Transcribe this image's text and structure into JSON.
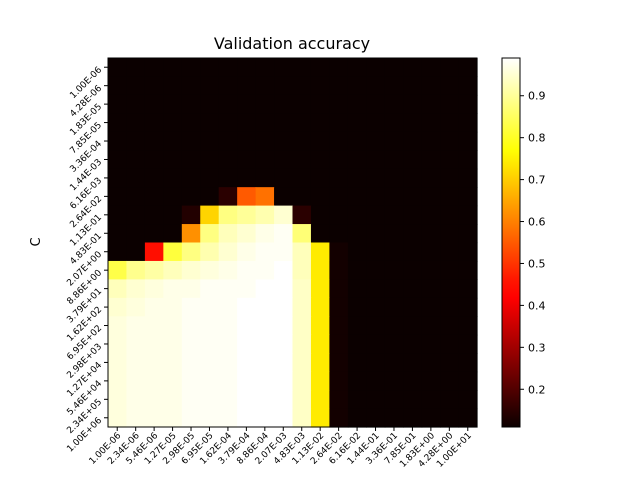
{
  "chart_data": {
    "type": "heatmap",
    "title": "Validation accuracy",
    "xlabel": "",
    "ylabel": "C",
    "x_categories": [
      "1.00E-06",
      "2.34E-06",
      "5.46E-06",
      "1.27E-05",
      "2.98E-05",
      "6.95E-05",
      "1.62E-04",
      "3.79E-04",
      "8.86E-04",
      "2.07E-03",
      "4.83E-03",
      "1.13E-02",
      "2.64E-02",
      "6.16E-02",
      "1.44E-01",
      "3.36E-01",
      "7.85E-01",
      "1.83E+00",
      "4.28E+00",
      "1.00E+01"
    ],
    "y_categories": [
      "1.00E-06",
      "4.28E-06",
      "1.83E-05",
      "7.85E-05",
      "3.36E-04",
      "1.44E-03",
      "6.16E-03",
      "2.64E-02",
      "1.13E-01",
      "4.83E-01",
      "2.07E+00",
      "8.86E+00",
      "3.79E+01",
      "1.62E+02",
      "6.95E+02",
      "2.98E+03",
      "1.27E+04",
      "5.46E+04",
      "2.34E+05",
      "1.00E+06"
    ],
    "colorbar": {
      "min": 0.11,
      "max": 0.99,
      "ticks": [
        "0.2",
        "0.3",
        "0.4",
        "0.5",
        "0.6",
        "0.7",
        "0.8",
        "0.9"
      ],
      "colormap": "hot"
    },
    "values": [
      [
        0.11,
        0.11,
        0.11,
        0.11,
        0.11,
        0.11,
        0.11,
        0.11,
        0.11,
        0.11,
        0.11,
        0.11,
        0.11,
        0.11,
        0.11,
        0.11,
        0.11,
        0.11,
        0.11,
        0.11
      ],
      [
        0.11,
        0.11,
        0.11,
        0.11,
        0.11,
        0.11,
        0.11,
        0.11,
        0.11,
        0.11,
        0.11,
        0.11,
        0.11,
        0.11,
        0.11,
        0.11,
        0.11,
        0.11,
        0.11,
        0.11
      ],
      [
        0.11,
        0.11,
        0.11,
        0.11,
        0.11,
        0.11,
        0.11,
        0.11,
        0.11,
        0.11,
        0.11,
        0.11,
        0.11,
        0.11,
        0.11,
        0.11,
        0.11,
        0.11,
        0.11,
        0.11
      ],
      [
        0.11,
        0.11,
        0.11,
        0.11,
        0.11,
        0.11,
        0.11,
        0.11,
        0.11,
        0.11,
        0.11,
        0.11,
        0.11,
        0.11,
        0.11,
        0.11,
        0.11,
        0.11,
        0.11,
        0.11
      ],
      [
        0.11,
        0.11,
        0.11,
        0.11,
        0.11,
        0.11,
        0.11,
        0.11,
        0.11,
        0.11,
        0.11,
        0.11,
        0.11,
        0.11,
        0.11,
        0.11,
        0.11,
        0.11,
        0.11,
        0.11
      ],
      [
        0.11,
        0.11,
        0.11,
        0.11,
        0.11,
        0.11,
        0.11,
        0.11,
        0.11,
        0.11,
        0.11,
        0.11,
        0.11,
        0.11,
        0.11,
        0.11,
        0.11,
        0.11,
        0.11,
        0.11
      ],
      [
        0.11,
        0.11,
        0.11,
        0.11,
        0.11,
        0.11,
        0.11,
        0.11,
        0.11,
        0.11,
        0.11,
        0.11,
        0.11,
        0.11,
        0.11,
        0.11,
        0.11,
        0.11,
        0.11,
        0.11
      ],
      [
        0.11,
        0.11,
        0.11,
        0.11,
        0.11,
        0.11,
        0.15,
        0.55,
        0.58,
        0.11,
        0.11,
        0.11,
        0.11,
        0.11,
        0.11,
        0.11,
        0.11,
        0.11,
        0.11,
        0.11
      ],
      [
        0.11,
        0.11,
        0.11,
        0.11,
        0.14,
        0.71,
        0.88,
        0.9,
        0.92,
        0.95,
        0.15,
        0.11,
        0.11,
        0.11,
        0.11,
        0.11,
        0.11,
        0.11,
        0.11,
        0.11
      ],
      [
        0.11,
        0.11,
        0.11,
        0.11,
        0.62,
        0.88,
        0.93,
        0.95,
        0.97,
        0.98,
        0.87,
        0.11,
        0.11,
        0.11,
        0.11,
        0.11,
        0.11,
        0.11,
        0.11,
        0.11
      ],
      [
        0.11,
        0.11,
        0.45,
        0.82,
        0.88,
        0.92,
        0.95,
        0.97,
        0.98,
        0.98,
        0.93,
        0.74,
        0.12,
        0.11,
        0.11,
        0.11,
        0.11,
        0.11,
        0.11,
        0.11
      ],
      [
        0.83,
        0.89,
        0.91,
        0.93,
        0.95,
        0.96,
        0.97,
        0.98,
        0.98,
        0.99,
        0.93,
        0.74,
        0.12,
        0.11,
        0.11,
        0.11,
        0.11,
        0.11,
        0.11,
        0.11
      ],
      [
        0.93,
        0.95,
        0.96,
        0.97,
        0.97,
        0.98,
        0.98,
        0.98,
        0.99,
        0.99,
        0.94,
        0.74,
        0.12,
        0.11,
        0.11,
        0.11,
        0.11,
        0.11,
        0.11,
        0.11
      ],
      [
        0.95,
        0.96,
        0.97,
        0.97,
        0.98,
        0.98,
        0.98,
        0.99,
        0.99,
        0.99,
        0.94,
        0.74,
        0.12,
        0.11,
        0.11,
        0.11,
        0.11,
        0.11,
        0.11,
        0.11
      ],
      [
        0.96,
        0.97,
        0.97,
        0.97,
        0.98,
        0.98,
        0.98,
        0.99,
        0.99,
        0.99,
        0.94,
        0.74,
        0.12,
        0.11,
        0.11,
        0.11,
        0.11,
        0.11,
        0.11,
        0.11
      ],
      [
        0.96,
        0.97,
        0.97,
        0.97,
        0.98,
        0.98,
        0.98,
        0.99,
        0.99,
        0.99,
        0.94,
        0.74,
        0.12,
        0.11,
        0.11,
        0.11,
        0.11,
        0.11,
        0.11,
        0.11
      ],
      [
        0.96,
        0.97,
        0.97,
        0.97,
        0.98,
        0.98,
        0.98,
        0.99,
        0.99,
        0.99,
        0.94,
        0.74,
        0.12,
        0.11,
        0.11,
        0.11,
        0.11,
        0.11,
        0.11,
        0.11
      ],
      [
        0.96,
        0.97,
        0.97,
        0.97,
        0.98,
        0.98,
        0.98,
        0.99,
        0.99,
        0.99,
        0.94,
        0.74,
        0.12,
        0.11,
        0.11,
        0.11,
        0.11,
        0.11,
        0.11,
        0.11
      ],
      [
        0.96,
        0.97,
        0.97,
        0.97,
        0.98,
        0.98,
        0.98,
        0.99,
        0.99,
        0.99,
        0.94,
        0.74,
        0.12,
        0.11,
        0.11,
        0.11,
        0.11,
        0.11,
        0.11,
        0.11
      ],
      [
        0.96,
        0.97,
        0.97,
        0.97,
        0.98,
        0.98,
        0.98,
        0.99,
        0.99,
        0.99,
        0.94,
        0.74,
        0.12,
        0.11,
        0.11,
        0.11,
        0.11,
        0.11,
        0.11,
        0.11
      ]
    ]
  }
}
